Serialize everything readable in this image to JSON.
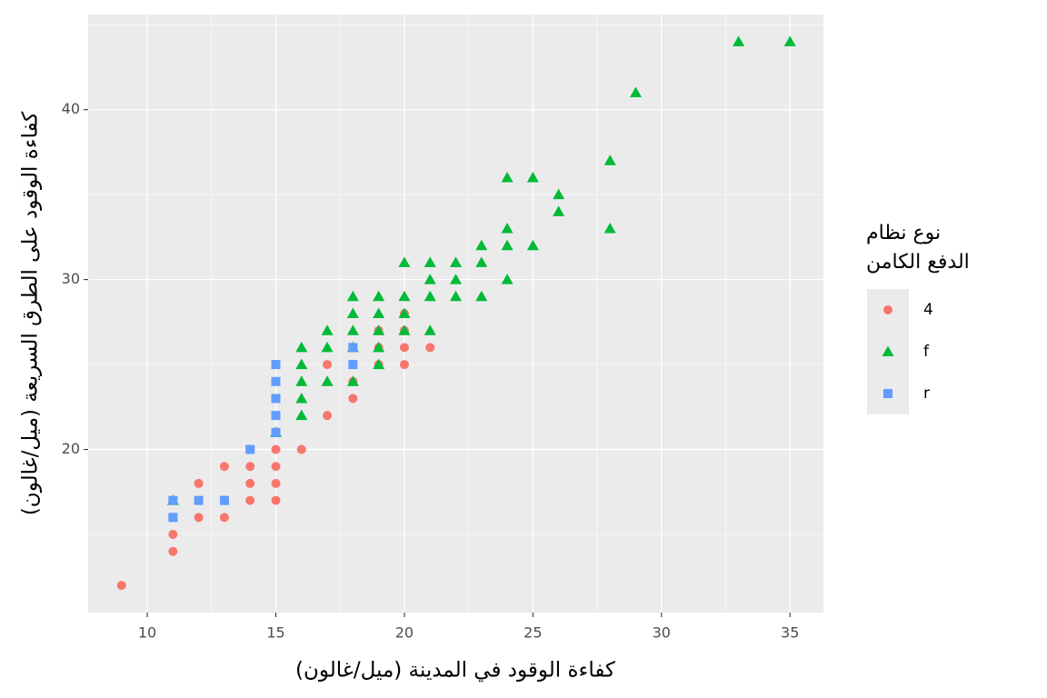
{
  "chart_data": {
    "type": "scatter",
    "x_label": "كفاءة الوقود في المدينة (ميل/غالون)",
    "y_label": "كفاءة الوقود على الطرق السريعة (ميل/غالون)",
    "legend_title": [
      "نوع نظام",
      "الدفع الكامن"
    ],
    "legend_position": "right",
    "grid": true,
    "xlim": [
      7.7,
      36.3
    ],
    "xticks": [
      10,
      15,
      20,
      25,
      30,
      35
    ],
    "x_minor_gridlines": [
      12.5,
      17.5,
      22.5,
      27.5,
      32.5
    ],
    "ylim": [
      10.4,
      45.6
    ],
    "yticks": [
      20,
      30,
      40
    ],
    "y_minor_gridlines": [
      15,
      25,
      35,
      45
    ],
    "series": [
      {
        "name": "4",
        "color": "#F8766D",
        "shape": "circle",
        "x": [
          9,
          11,
          11,
          12,
          12,
          13,
          13,
          13,
          14,
          14,
          14,
          14,
          15,
          15,
          15,
          15,
          16,
          17,
          17,
          18,
          18,
          19,
          19,
          19,
          20,
          20,
          20,
          20,
          21
        ],
        "values": [
          12,
          14,
          15,
          16,
          18,
          16,
          17,
          19,
          17,
          18,
          19,
          20,
          17,
          18,
          19,
          20,
          20,
          22,
          25,
          23,
          24,
          25,
          26,
          27,
          25,
          26,
          27,
          28,
          26
        ]
      },
      {
        "name": "f",
        "color": "#00BA38",
        "shape": "triangle",
        "x": [
          11,
          15,
          16,
          16,
          16,
          16,
          16,
          17,
          17,
          17,
          18,
          18,
          18,
          18,
          18,
          19,
          19,
          19,
          19,
          19,
          20,
          20,
          20,
          20,
          21,
          21,
          21,
          21,
          22,
          22,
          22,
          23,
          23,
          23,
          24,
          24,
          24,
          24,
          25,
          25,
          26,
          26,
          28,
          28,
          29,
          33,
          35
        ],
        "values": [
          17,
          21,
          22,
          23,
          24,
          25,
          26,
          24,
          26,
          27,
          24,
          26,
          27,
          28,
          29,
          25,
          26,
          27,
          28,
          29,
          27,
          28,
          29,
          31,
          27,
          29,
          30,
          31,
          29,
          30,
          31,
          29,
          31,
          32,
          30,
          32,
          33,
          36,
          32,
          36,
          34,
          35,
          33,
          37,
          41,
          44,
          44
        ]
      },
      {
        "name": "r",
        "color": "#619CFF",
        "shape": "square",
        "x": [
          11,
          11,
          12,
          13,
          14,
          15,
          15,
          15,
          15,
          15,
          18,
          18
        ],
        "values": [
          16,
          17,
          17,
          17,
          20,
          21,
          22,
          23,
          24,
          25,
          25,
          26
        ]
      }
    ]
  }
}
